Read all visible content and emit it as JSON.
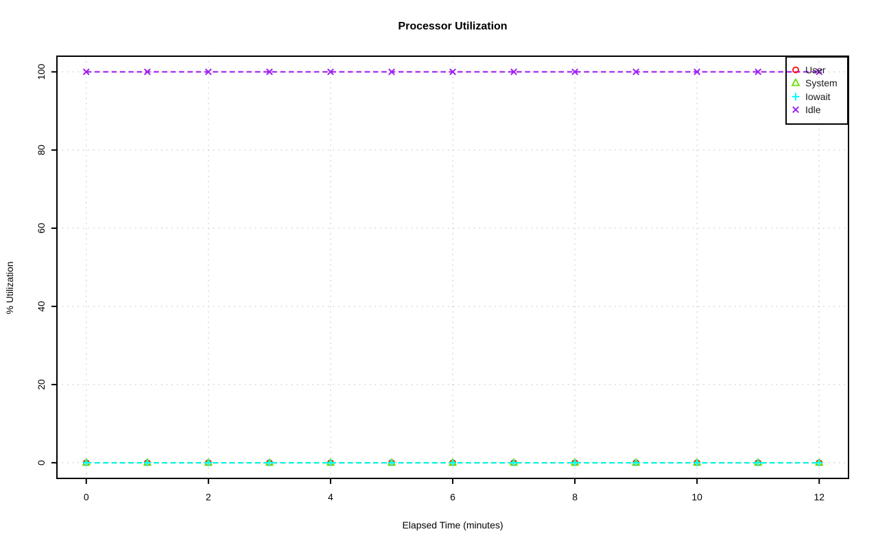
{
  "chart_data": {
    "type": "line",
    "title": "Processor Utilization",
    "xlabel": "Elapsed Time (minutes)",
    "ylabel": "% Utilization",
    "x": [
      0,
      1,
      2,
      3,
      4,
      5,
      6,
      7,
      8,
      9,
      10,
      11,
      12
    ],
    "series": [
      {
        "name": "User",
        "color": "#FF0000",
        "marker": "circle",
        "values": [
          0,
          0,
          0,
          0,
          0,
          0,
          0,
          0,
          0,
          0,
          0,
          0,
          0
        ]
      },
      {
        "name": "System",
        "color": "#66E000",
        "marker": "triangle",
        "values": [
          0,
          0,
          0,
          0,
          0,
          0,
          0,
          0,
          0,
          0,
          0,
          0,
          0
        ]
      },
      {
        "name": "Iowait",
        "color": "#00FFFF",
        "marker": "plus",
        "values": [
          0,
          0,
          0,
          0,
          0,
          0,
          0,
          0,
          0,
          0,
          0,
          0,
          0
        ]
      },
      {
        "name": "Idle",
        "color": "#A020F0",
        "marker": "x",
        "values": [
          100,
          100,
          100,
          100,
          100,
          100,
          100,
          100,
          100,
          100,
          100,
          100,
          100
        ]
      }
    ],
    "x_ticks": [
      0,
      2,
      4,
      6,
      8,
      10,
      12
    ],
    "y_ticks": [
      0,
      20,
      40,
      60,
      80,
      100
    ],
    "xlim": [
      -0.48,
      12.48
    ],
    "ylim": [
      -4,
      104
    ],
    "grid": true,
    "grid_color": "#C8C8C8",
    "line_style": "dashed",
    "legend_position": "topright",
    "axis_color": "#000000"
  }
}
